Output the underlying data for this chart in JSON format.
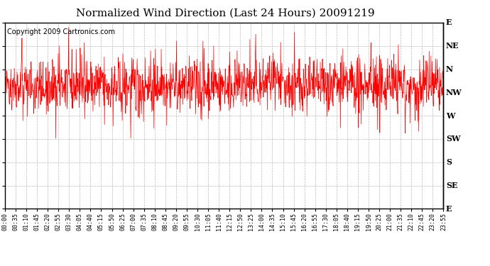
{
  "title": "Normalized Wind Direction (Last 24 Hours) 20091219",
  "copyright_text": "Copyright 2009 Cartronics.com",
  "line_color": "#ff0000",
  "bg_color": "#ffffff",
  "grid_color": "#aaaaaa",
  "y_labels": [
    "E",
    "NE",
    "N",
    "NW",
    "W",
    "SW",
    "S",
    "SE",
    "E"
  ],
  "y_values": [
    8,
    7,
    6,
    5,
    4,
    3,
    2,
    1,
    0
  ],
  "y_min": 0,
  "y_max": 8,
  "x_tick_labels": [
    "00:00",
    "00:35",
    "01:10",
    "01:45",
    "02:20",
    "02:55",
    "03:30",
    "04:05",
    "04:40",
    "05:15",
    "05:50",
    "06:25",
    "07:00",
    "07:35",
    "08:10",
    "08:45",
    "09:20",
    "09:55",
    "10:30",
    "11:05",
    "11:40",
    "12:15",
    "12:50",
    "13:25",
    "14:00",
    "14:35",
    "15:10",
    "15:45",
    "16:20",
    "16:55",
    "17:30",
    "18:05",
    "18:40",
    "19:15",
    "19:50",
    "20:25",
    "21:00",
    "21:35",
    "22:10",
    "22:45",
    "23:20",
    "23:55"
  ],
  "title_fontsize": 11,
  "copyright_fontsize": 7,
  "tick_fontsize": 6,
  "ylabel_fontsize": 8,
  "n_points": 1440,
  "seed": 42
}
